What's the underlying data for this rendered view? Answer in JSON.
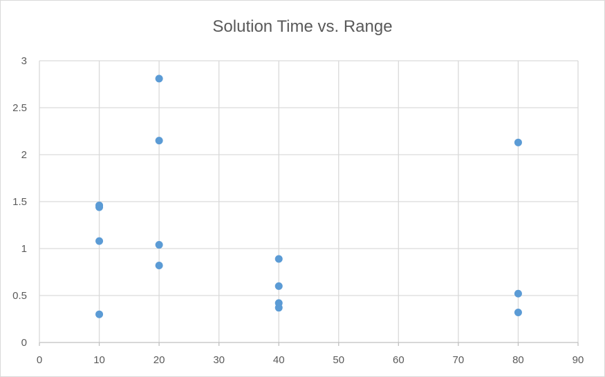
{
  "chart_data": {
    "type": "scatter",
    "title": "Solution Time vs. Range",
    "xlabel": "",
    "ylabel": "",
    "xlim": [
      0,
      90
    ],
    "ylim": [
      0,
      3
    ],
    "xticks": [
      0,
      10,
      20,
      30,
      40,
      50,
      60,
      70,
      80,
      90
    ],
    "yticks": [
      0,
      0.5,
      1,
      1.5,
      2,
      2.5,
      3
    ],
    "grid": true,
    "legend": "none",
    "marker_color": "#5b9bd5",
    "gridline_color": "#d9d9d9",
    "series": [
      {
        "points": [
          {
            "x": 10,
            "y": 1.46
          },
          {
            "x": 10,
            "y": 1.44
          },
          {
            "x": 10,
            "y": 1.08
          },
          {
            "x": 10,
            "y": 0.3
          },
          {
            "x": 20,
            "y": 2.81
          },
          {
            "x": 20,
            "y": 2.15
          },
          {
            "x": 20,
            "y": 1.04
          },
          {
            "x": 20,
            "y": 0.82
          },
          {
            "x": 40,
            "y": 0.89
          },
          {
            "x": 40,
            "y": 0.6
          },
          {
            "x": 40,
            "y": 0.42
          },
          {
            "x": 40,
            "y": 0.37
          },
          {
            "x": 80,
            "y": 2.13
          },
          {
            "x": 80,
            "y": 0.52
          },
          {
            "x": 80,
            "y": 0.32
          }
        ]
      }
    ]
  }
}
